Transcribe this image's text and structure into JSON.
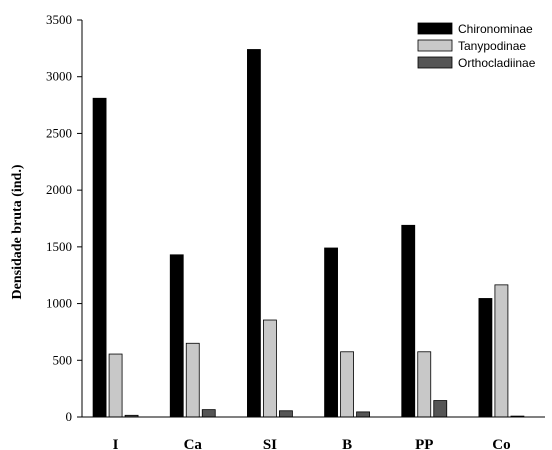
{
  "chart_data": {
    "type": "bar",
    "title": "",
    "xlabel": "",
    "ylabel": "Densidade bruta (ind.)",
    "categories": [
      "I",
      "Ca",
      "SI",
      "B",
      "PP",
      "Co"
    ],
    "ylim": [
      0,
      3500
    ],
    "yticks": [
      0,
      500,
      1000,
      1500,
      2000,
      2500,
      3000,
      3500
    ],
    "grid": false,
    "legend_position": "top-right",
    "series": [
      {
        "name": "Chironominae",
        "color": "#000000",
        "values": [
          2810,
          1430,
          3240,
          1490,
          1690,
          1045
        ]
      },
      {
        "name": "Tanypodinae",
        "color": "#c8c8c8",
        "values": [
          555,
          650,
          855,
          575,
          575,
          1165
        ]
      },
      {
        "name": "Orthocladiinae",
        "color": "#555555",
        "values": [
          15,
          65,
          55,
          45,
          145,
          8
        ]
      }
    ]
  }
}
